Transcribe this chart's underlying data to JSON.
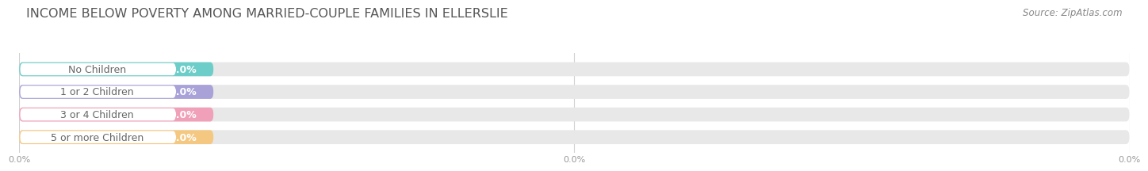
{
  "title": "INCOME BELOW POVERTY AMONG MARRIED-COUPLE FAMILIES IN ELLERSLIE",
  "source": "Source: ZipAtlas.com",
  "categories": [
    "No Children",
    "1 or 2 Children",
    "3 or 4 Children",
    "5 or more Children"
  ],
  "values": [
    0.0,
    0.0,
    0.0,
    0.0
  ],
  "bar_colors": [
    "#6dcdc8",
    "#a8a2d8",
    "#f0a0b8",
    "#f5c882"
  ],
  "bar_bg_color": "#e8e8e8",
  "white_label_bg": "#ffffff",
  "value_labels": [
    "0.0%",
    "0.0%",
    "0.0%",
    "0.0%"
  ],
  "label_text_color": "#666666",
  "value_text_color": "#ffffff",
  "xtick_labels": [
    "0.0%",
    "0.0%",
    "0.0%"
  ],
  "background_color": "#ffffff",
  "title_fontsize": 11.5,
  "label_fontsize": 9,
  "value_fontsize": 9,
  "source_fontsize": 8.5,
  "grid_color": "#d0d0d0"
}
